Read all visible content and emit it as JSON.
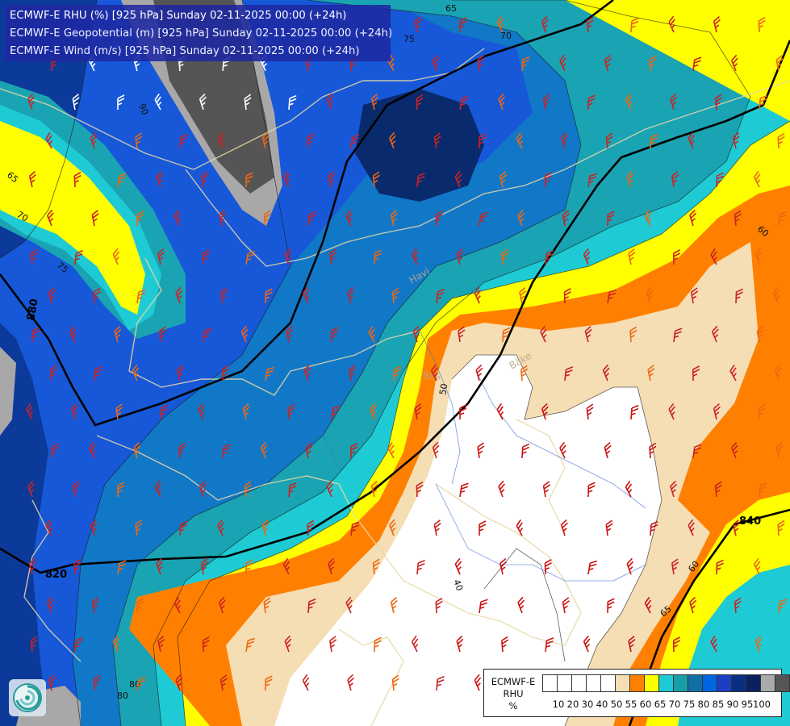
{
  "header": {
    "lines": [
      "ECMWF-E RHU (%) [925 hPa] Sunday 02-11-2025 00:00 (+24h)",
      "ECMWF-E Geopotential (m) [925 hPa] Sunday 02-11-2025 00:00 (+24h)",
      "ECMWF-E Wind (m/s) [925 hPa] Sunday 02-11-2025 00:00 (+24h)"
    ]
  },
  "legend": {
    "title_lines": [
      "ECMWF-E",
      "RHU",
      "%"
    ],
    "swatch_colors": [
      "#ffffff",
      "#ffffff",
      "#ffffff",
      "#ffffff",
      "#ffffff",
      "#f5deb3",
      "#ff8000",
      "#ffff00",
      "#1ecbd4",
      "#169fa8",
      "#126fa6",
      "#0066e0",
      "#1a3fc4",
      "#0b2f80",
      "#0a2060",
      "#aaaaaa",
      "#555555"
    ],
    "ticks": [
      "10",
      "20",
      "30",
      "40",
      "50",
      "55",
      "60",
      "65",
      "70",
      "75",
      "80",
      "85",
      "90",
      "95",
      "100"
    ]
  },
  "geopotential_labels": [
    "820",
    "840",
    "880"
  ],
  "rhu_contour_labels": [
    "90",
    "65",
    "70",
    "75",
    "80",
    "65",
    "70",
    "75",
    "60",
    "60",
    "65",
    "50",
    "40",
    "80"
  ],
  "place_labels": [
    "Bes",
    "Bàke",
    "Havi"
  ],
  "logo": {
    "name": "ecmwf-logo"
  }
}
